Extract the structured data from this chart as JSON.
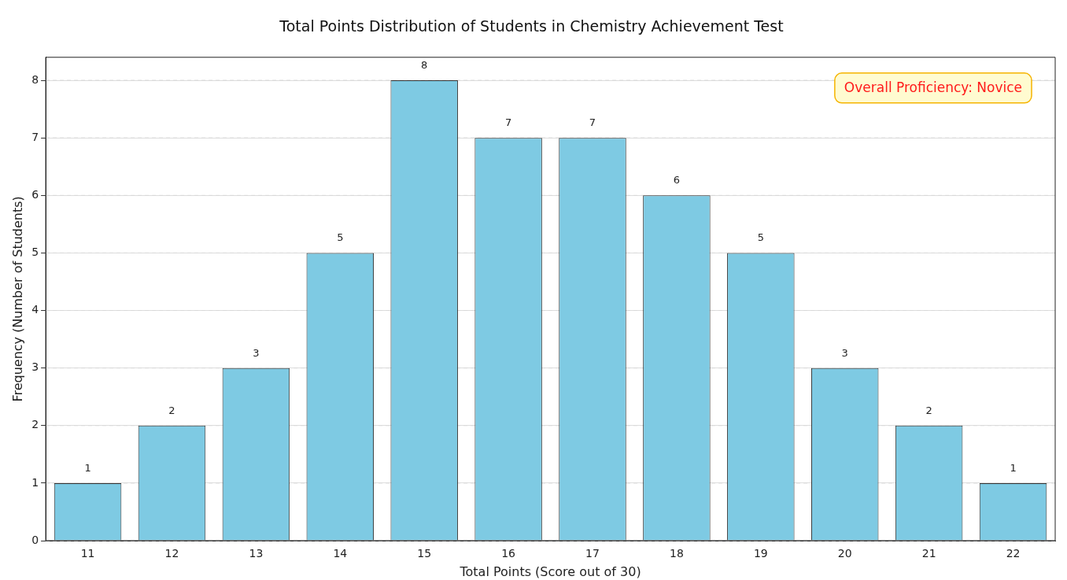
{
  "chart_data": {
    "type": "bar",
    "title": "Total Points Distribution of Students in Chemistry Achievement Test",
    "xlabel": "Total Points (Score out of 30)",
    "ylabel": "Frequency (Number of Students)",
    "categories": [
      "11",
      "12",
      "13",
      "14",
      "15",
      "16",
      "17",
      "18",
      "19",
      "20",
      "21",
      "22"
    ],
    "values": [
      1,
      2,
      3,
      5,
      8,
      7,
      7,
      6,
      5,
      3,
      2,
      1
    ],
    "color": "#7ecae3",
    "ylim": [
      0,
      8.4
    ],
    "yticks": [
      0,
      1,
      2,
      3,
      4,
      5,
      6,
      7,
      8
    ],
    "grid": "y",
    "data_labels": true,
    "legend": false,
    "annotations": [
      "Overall Proficiency: Novice"
    ]
  }
}
